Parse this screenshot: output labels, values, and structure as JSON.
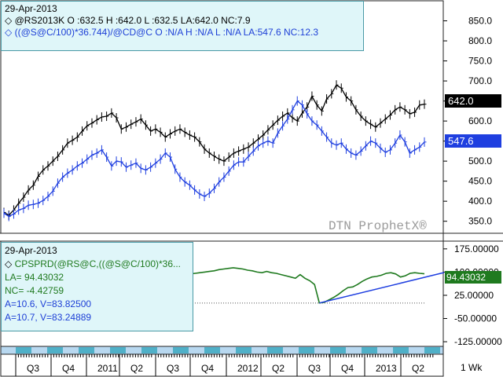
{
  "upper_legend": {
    "date": "29-Apr-2013",
    "line1": "@RS2013K O :632.5 H :642.0 L :632.5 LA:642.0 NC:7.9",
    "line2": "((@S@C/100)*36.744)/@CD@C O :N/A H :N/A L :N/A LA:547.6 NC:12.3"
  },
  "lower_legend": {
    "date": "29-Apr-2013",
    "title": "CPSPRD(@RS@C,((@S@C/100)*36...",
    "la": "LA= 94.43032",
    "nc": "NC= -4.42759",
    "a1": "A=10.6, V=83.82500",
    "a2": "A=10.7, V=83.24889"
  },
  "watermark": "DTN ProphetX®",
  "period_label": "1 Wk",
  "colors": {
    "canola": "#000000",
    "soy_equiv": "#1f3fe0",
    "spread": "#1f7a1f",
    "spread_faded": "#a8cfa8",
    "trendline": "#1f3fe0",
    "legend_bg": "#dff6f9",
    "last_black_bg": "#000000",
    "last_blue_bg": "#1f3fe0"
  },
  "chart_data": [
    {
      "type": "line",
      "title": "",
      "y_ticks": [
        "350.0",
        "400.0",
        "450.0",
        "500.0",
        "550.0",
        "600.0",
        "650.0",
        "700.0",
        "750.0",
        "800.0",
        "850.0"
      ],
      "ylim": [
        320,
        900
      ],
      "last_values": {
        "canola": "642.0",
        "soy_equiv": "547.6"
      },
      "series": [
        {
          "name": "@RS2013K",
          "color_key": "canola",
          "values": [
            372,
            365,
            378,
            395,
            410,
            428,
            440,
            462,
            478,
            488,
            500,
            512,
            528,
            545,
            552,
            560,
            575,
            588,
            595,
            603,
            610,
            612,
            620,
            608,
            580,
            585,
            592,
            598,
            605,
            590,
            575,
            580,
            572,
            560,
            568,
            575,
            580,
            572,
            565,
            560,
            548,
            530,
            520,
            512,
            505,
            500,
            510,
            520,
            525,
            530,
            535,
            545,
            555,
            565,
            578,
            590,
            602,
            612,
            620,
            608,
            600,
            620,
            635,
            662,
            640,
            625,
            655,
            668,
            690,
            682,
            660,
            650,
            628,
            612,
            600,
            592,
            585,
            595,
            605,
            615,
            628,
            635,
            628,
            618,
            622,
            640,
            642
          ]
        },
        {
          "name": "((@S@C/100)*36.744)/@CD@C",
          "color_key": "soy_equiv",
          "values": [
            370,
            362,
            368,
            378,
            382,
            390,
            392,
            395,
            402,
            412,
            425,
            445,
            460,
            470,
            478,
            488,
            495,
            505,
            515,
            520,
            528,
            510,
            488,
            500,
            498,
            485,
            490,
            495,
            482,
            478,
            485,
            495,
            505,
            520,
            510,
            480,
            460,
            448,
            440,
            428,
            418,
            412,
            420,
            432,
            448,
            460,
            475,
            490,
            498,
            498,
            512,
            525,
            538,
            545,
            550,
            545,
            570,
            588,
            605,
            628,
            650,
            640,
            618,
            600,
            590,
            575,
            560,
            545,
            540,
            545,
            530,
            520,
            515,
            525,
            538,
            550,
            545,
            532,
            522,
            528,
            545,
            565,
            548,
            520,
            528,
            535,
            547.6
          ]
        }
      ]
    },
    {
      "type": "line",
      "title": "",
      "y_ticks": [
        "175.00000",
        "100.00000",
        "25.00000",
        "-50.00000",
        "-125.00000"
      ],
      "ylim": [
        -140,
        200
      ],
      "last_value": "94.43032",
      "dotted_reference": 0,
      "series": [
        {
          "name": "CPSPRD",
          "color_key": "spread",
          "values": [
            100,
            98,
            104,
            108,
            110,
            114,
            112,
            108,
            105,
            100,
            95,
            92,
            96,
            100,
            104,
            108,
            110,
            108,
            104,
            100,
            98,
            96,
            100,
            102,
            100,
            96,
            92,
            88,
            85,
            80,
            74,
            72,
            74,
            78,
            82,
            84,
            86,
            88,
            92,
            94,
            96,
            98,
            100,
            102,
            104,
            108,
            110,
            112,
            114,
            112,
            110,
            106,
            104,
            100,
            98,
            102,
            98,
            96,
            92,
            88,
            84,
            80,
            92,
            80,
            72,
            60,
            0,
            2,
            10,
            18,
            28,
            40,
            50,
            52,
            60,
            70,
            78,
            84,
            86,
            90,
            96,
            98,
            94,
            84,
            88,
            96,
            98,
            96,
            94.43
          ]
        }
      ],
      "trendline": {
        "from": [
          66,
          0
        ],
        "to": [
          88,
          94.43
        ]
      }
    }
  ],
  "x_axis": {
    "labels": [
      "Q3",
      "Q4",
      "2011",
      "Q2",
      "Q3",
      "Q4",
      "2012",
      "Q2",
      "Q3",
      "Q4",
      "2013",
      "Q2"
    ]
  }
}
